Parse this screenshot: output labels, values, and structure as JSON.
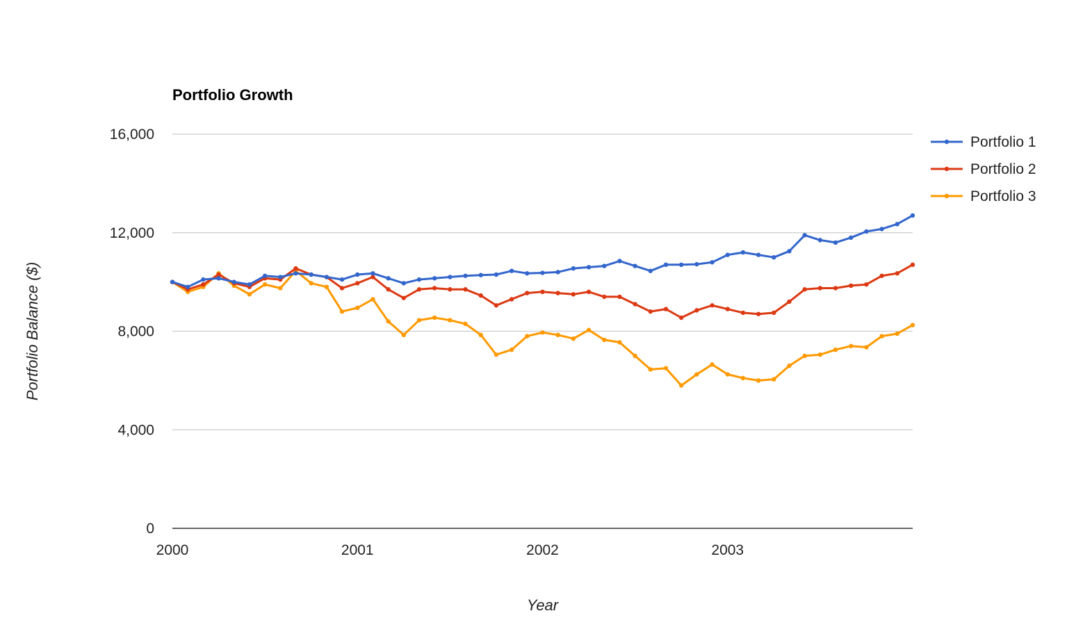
{
  "chart_data": {
    "type": "line",
    "title": "Portfolio Growth",
    "xlabel": "Year",
    "ylabel": "Portfolio Balance ($)",
    "ylim": [
      0,
      16000
    ],
    "xlim": [
      "2000-01",
      "2003-12"
    ],
    "yticks": [
      0,
      4000,
      8000,
      12000,
      16000
    ],
    "ytick_labels": [
      "0",
      "4,000",
      "8,000",
      "12,000",
      "16,000"
    ],
    "xticks": [
      "2000",
      "2001",
      "2002",
      "2003"
    ],
    "grid": true,
    "legend_position": "right",
    "x": [
      "2000-01",
      "2000-02",
      "2000-03",
      "2000-04",
      "2000-05",
      "2000-06",
      "2000-07",
      "2000-08",
      "2000-09",
      "2000-10",
      "2000-11",
      "2000-12",
      "2001-01",
      "2001-02",
      "2001-03",
      "2001-04",
      "2001-05",
      "2001-06",
      "2001-07",
      "2001-08",
      "2001-09",
      "2001-10",
      "2001-11",
      "2001-12",
      "2002-01",
      "2002-02",
      "2002-03",
      "2002-04",
      "2002-05",
      "2002-06",
      "2002-07",
      "2002-08",
      "2002-09",
      "2002-10",
      "2002-11",
      "2002-12",
      "2003-01",
      "2003-02",
      "2003-03",
      "2003-04",
      "2003-05",
      "2003-06",
      "2003-07",
      "2003-08",
      "2003-09",
      "2003-10",
      "2003-11",
      "2003-12",
      "2004-01"
    ],
    "series": [
      {
        "name": "Portfolio 1",
        "color": "#3366cc",
        "values": [
          10000,
          9800,
          10100,
          10150,
          10000,
          9900,
          10250,
          10200,
          10350,
          10300,
          10200,
          10100,
          10300,
          10350,
          10150,
          9950,
          10100,
          10150,
          10200,
          10250,
          10280,
          10300,
          10450,
          10350,
          10370,
          10400,
          10550,
          10600,
          10650,
          10850,
          10650,
          10450,
          10700,
          10700,
          10720,
          10800,
          11100,
          11200,
          11100,
          11000,
          11250,
          11900,
          11700,
          11600,
          11800,
          12050,
          12150,
          12350,
          12700
        ]
      },
      {
        "name": "Portfolio 2",
        "color": "#dc3912",
        "values": [
          10000,
          9700,
          9900,
          10300,
          9950,
          9800,
          10150,
          10100,
          10550,
          10300,
          10200,
          9750,
          9950,
          10200,
          9700,
          9350,
          9700,
          9750,
          9700,
          9700,
          9450,
          9050,
          9300,
          9550,
          9600,
          9550,
          9500,
          9600,
          9400,
          9400,
          9100,
          8800,
          8900,
          8550,
          8850,
          9050,
          8900,
          8750,
          8700,
          8750,
          9200,
          9700,
          9750,
          9750,
          9850,
          9900,
          10250,
          10350,
          10700
        ]
      },
      {
        "name": "Portfolio 3",
        "color": "#ff9900",
        "values": [
          10000,
          9600,
          9800,
          10350,
          9850,
          9500,
          9900,
          9750,
          10450,
          9950,
          9800,
          8800,
          8950,
          9300,
          8400,
          7850,
          8450,
          8550,
          8450,
          8300,
          7850,
          7050,
          7250,
          7800,
          7950,
          7850,
          7700,
          8050,
          7650,
          7550,
          7000,
          6450,
          6500,
          5800,
          6250,
          6650,
          6250,
          6100,
          6000,
          6050,
          6600,
          7000,
          7050,
          7250,
          7400,
          7350,
          7800,
          7900,
          8250
        ]
      }
    ]
  }
}
